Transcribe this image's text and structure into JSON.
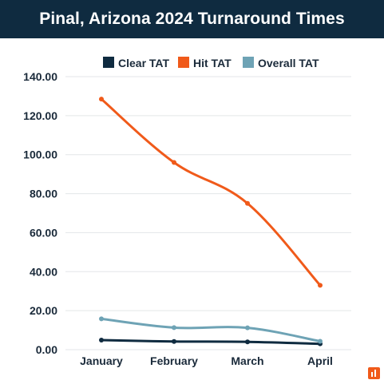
{
  "chart_data": {
    "type": "line",
    "title": "Pinal, Arizona 2024 Turnaround Times",
    "categories": [
      "January",
      "February",
      "March",
      "April"
    ],
    "series": [
      {
        "name": "Clear TAT",
        "values": [
          4.9,
          4.2,
          4.0,
          3.0
        ],
        "color": "#0f2b40"
      },
      {
        "name": "Hit TAT",
        "values": [
          128.5,
          96.0,
          75.0,
          33.0
        ],
        "color": "#f05a1a"
      },
      {
        "name": "Overall TAT",
        "values": [
          15.8,
          11.3,
          11.2,
          4.3
        ],
        "color": "#6ea3b5"
      }
    ],
    "ylim": [
      0,
      140
    ],
    "yticks": [
      "0.00",
      "20.00",
      "40.00",
      "60.00",
      "80.00",
      "100.00",
      "120.00",
      "140.00"
    ],
    "grid": true,
    "legend": "top"
  }
}
